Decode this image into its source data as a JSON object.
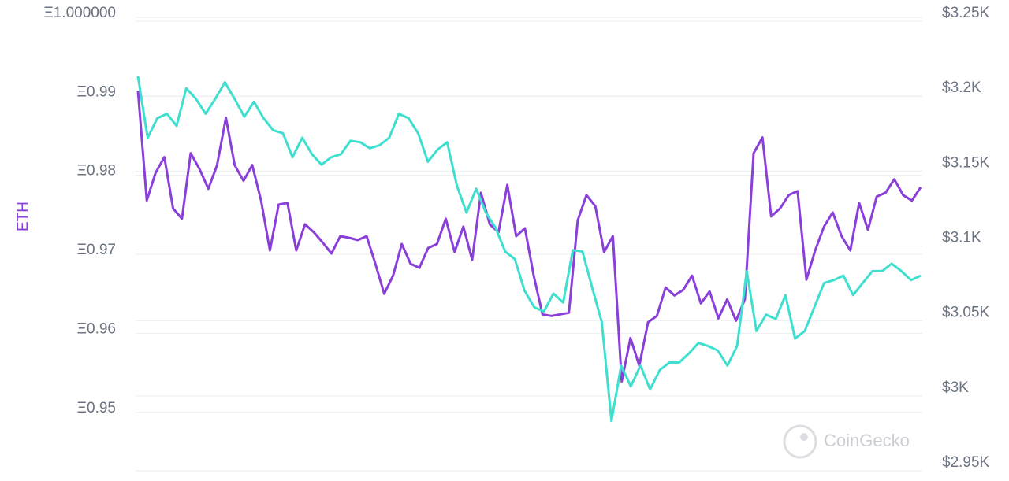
{
  "chart_data": {
    "type": "line",
    "y_label": "ETH",
    "watermark": "CoinGecko",
    "grid": true,
    "ylim": [
      0.9431,
      1.0
    ],
    "yticks": [
      {
        "value": 1.0,
        "label": "Ξ1.000000"
      },
      {
        "value": 0.99,
        "label": "Ξ0.99"
      },
      {
        "value": 0.98,
        "label": "Ξ0.98"
      },
      {
        "value": 0.97,
        "label": "Ξ0.97"
      },
      {
        "value": 0.96,
        "label": "Ξ0.96"
      },
      {
        "value": 0.95,
        "label": "Ξ0.95"
      }
    ],
    "y2lim": [
      2950,
      3250
    ],
    "y2ticks": [
      {
        "value": 3250,
        "label": "$3.25K"
      },
      {
        "value": 3200,
        "label": "$3.2K"
      },
      {
        "value": 3150,
        "label": "$3.15K"
      },
      {
        "value": 3100,
        "label": "$3.1K"
      },
      {
        "value": 3050,
        "label": "$3.05K"
      },
      {
        "value": 3000,
        "label": "$3K"
      },
      {
        "value": 2950,
        "label": "$2.95K"
      }
    ],
    "series": [
      {
        "color": "#8b3fd9",
        "axis": "y",
        "values": [
          0.9902,
          0.9763,
          0.9798,
          0.9818,
          0.9753,
          0.974,
          0.9823,
          0.9803,
          0.9778,
          0.9808,
          0.9868,
          0.9808,
          0.9788,
          0.9808,
          0.9763,
          0.97,
          0.9758,
          0.976,
          0.97,
          0.9733,
          0.9723,
          0.971,
          0.9696,
          0.9718,
          0.9716,
          0.9713,
          0.9718,
          0.9683,
          0.9645,
          0.9668,
          0.9708,
          0.9683,
          0.9678,
          0.9703,
          0.9708,
          0.974,
          0.9698,
          0.973,
          0.9688,
          0.9773,
          0.9733,
          0.9723,
          0.9783,
          0.9718,
          0.9728,
          0.9668,
          0.9619,
          0.9617,
          0.9619,
          0.9621,
          0.9738,
          0.977,
          0.9756,
          0.9698,
          0.9718,
          0.9534,
          0.9589,
          0.9554,
          0.9609,
          0.9617,
          0.9653,
          0.9643,
          0.965,
          0.9668,
          0.9633,
          0.9648,
          0.9614,
          0.9638,
          0.9611,
          0.9638,
          0.9823,
          0.9843,
          0.9743,
          0.9753,
          0.977,
          0.9775,
          0.9663,
          0.97,
          0.973,
          0.9748,
          0.9718,
          0.97,
          0.976,
          0.9726,
          0.9768,
          0.9773,
          0.979,
          0.977,
          0.9763,
          0.978
        ]
      },
      {
        "color": "#3fdfcf",
        "axis": "y2",
        "values": [
          3208,
          3167,
          3180,
          3183,
          3175,
          3200,
          3193,
          3183,
          3193,
          3204,
          3193,
          3181,
          3191,
          3180,
          3172,
          3170,
          3154,
          3167,
          3156,
          3149,
          3154,
          3156,
          3165,
          3164,
          3160,
          3162,
          3167,
          3183,
          3180,
          3170,
          3151,
          3159,
          3164,
          3135,
          3117,
          3133,
          3117,
          3107,
          3091,
          3086,
          3065,
          3054,
          3051,
          3063,
          3057,
          3092,
          3091,
          3067,
          3044,
          2978,
          3015,
          3001,
          3015,
          2999,
          3012,
          3017,
          3017,
          3023,
          3030,
          3028,
          3025,
          3015,
          3028,
          3078,
          3038,
          3049,
          3046,
          3062,
          3033,
          3038,
          3054,
          3070,
          3072,
          3075,
          3062,
          3070,
          3078,
          3078,
          3083,
          3078,
          3072,
          3075
        ]
      }
    ]
  }
}
